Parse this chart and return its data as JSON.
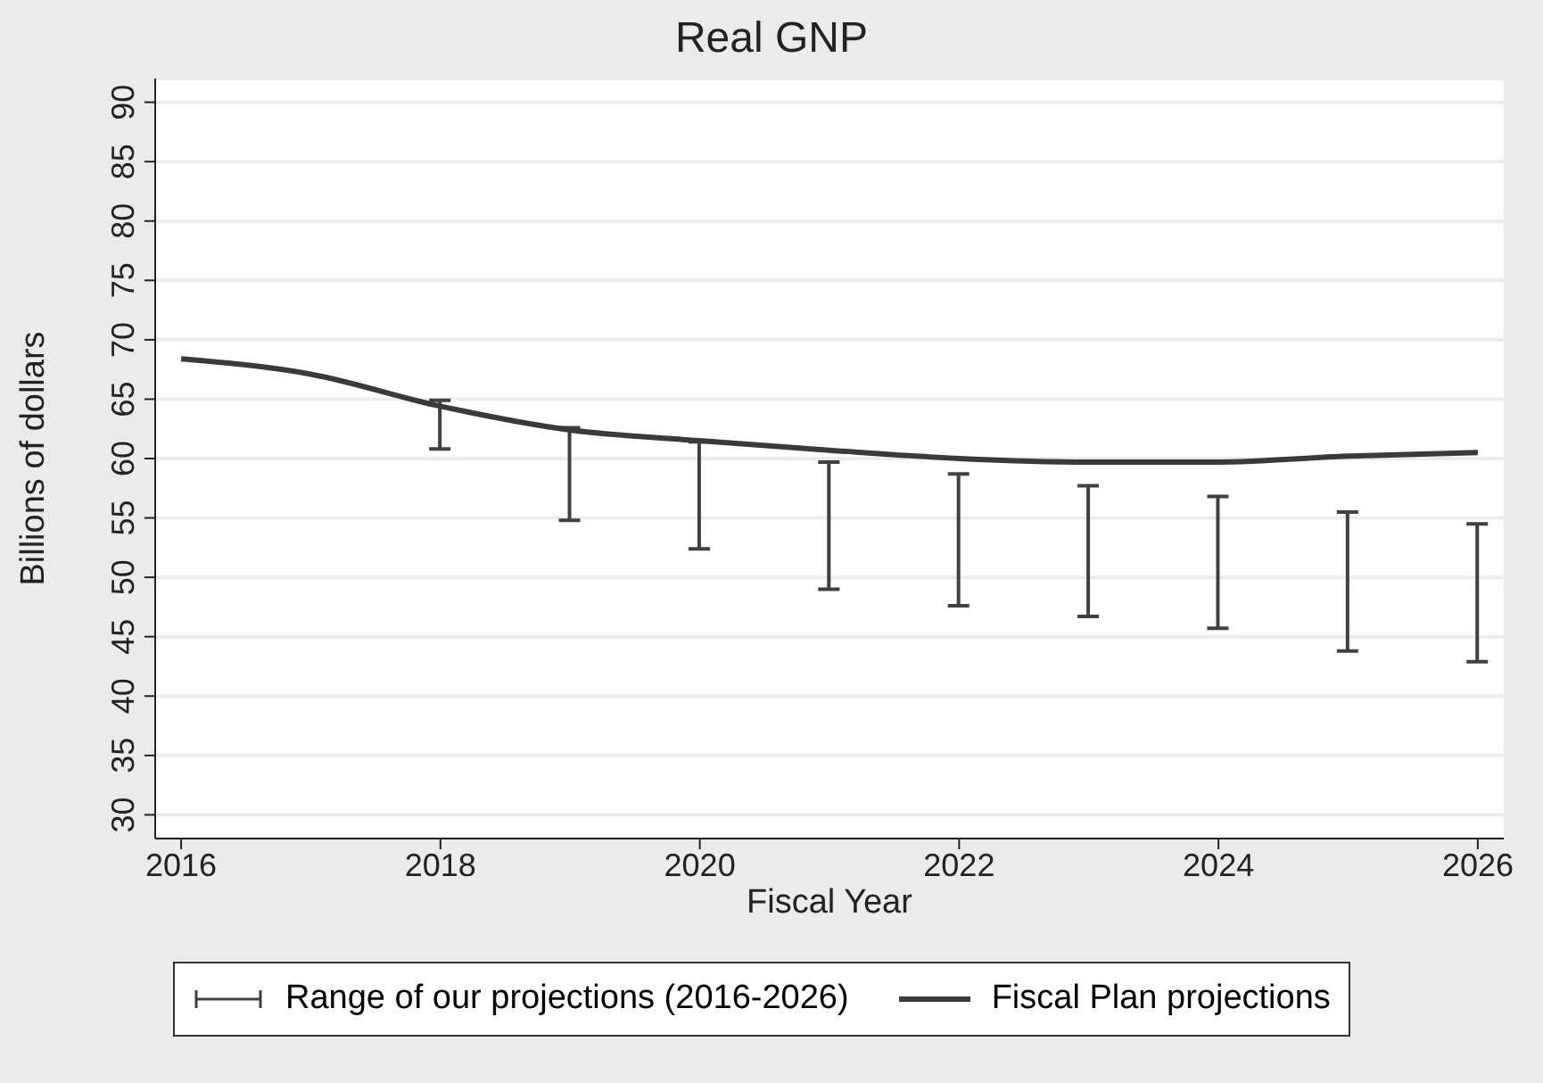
{
  "chart_data": {
    "type": "line",
    "title": "Real GNP",
    "xlabel": "Fiscal Year",
    "ylabel": "Billions of dollars",
    "xlim": [
      2015.8,
      2026.2
    ],
    "xticks": [
      2016,
      2018,
      2020,
      2022,
      2024,
      2026
    ],
    "ylim": [
      28,
      92
    ],
    "yticks": [
      30,
      35,
      40,
      45,
      50,
      55,
      60,
      65,
      70,
      75,
      80,
      85,
      90
    ],
    "grid": "y",
    "legend": "bottom",
    "marker": "none",
    "line_style": "solid",
    "series": [
      {
        "name": "Range of our projections (2016-2026)",
        "type": "bar",
        "color": "#404040",
        "x": [
          2018,
          2019,
          2020,
          2021,
          2022,
          2023,
          2024,
          2025,
          2026
        ],
        "base": [
          60.8,
          54.8,
          52.4,
          49.0,
          47.6,
          46.7,
          45.7,
          43.8,
          42.9
        ],
        "values": [
          4.1,
          7.8,
          9.0,
          10.7,
          11.1,
          11.0,
          11.1,
          11.7,
          11.6
        ]
      },
      {
        "name": "Fiscal Plan projections",
        "color": "#3a3a3a",
        "x": [
          2016,
          2017,
          2018,
          2019,
          2020,
          2021,
          2022,
          2023,
          2024,
          2025,
          2026
        ],
        "values": [
          68.4,
          67.1,
          64.4,
          62.4,
          61.5,
          60.7,
          60.0,
          59.7,
          59.7,
          60.2,
          60.5
        ]
      }
    ]
  }
}
